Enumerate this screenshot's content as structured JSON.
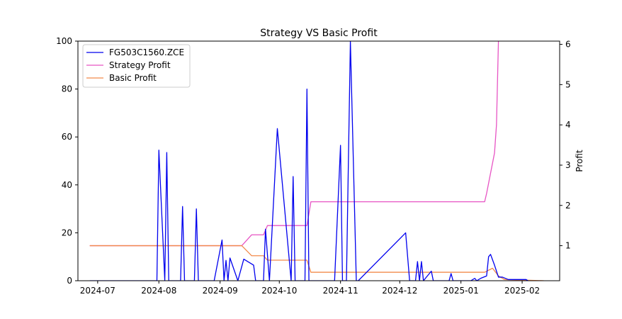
{
  "chart_data": {
    "type": "line",
    "title": "Strategy VS Basic Profit",
    "xlabel": "",
    "ylabel_left": "",
    "ylabel_right": "Profit",
    "x_ticks": [
      "2024-07",
      "2024-08",
      "2024-09",
      "2024-10",
      "2024-11",
      "2024-12",
      "2025-01",
      "2025-02"
    ],
    "y_left_ticks": [
      "0",
      "20",
      "40",
      "60",
      "80",
      "100"
    ],
    "y_right_ticks": [
      "1",
      "2",
      "3",
      "4",
      "5",
      "6"
    ],
    "y_left_range": [
      0,
      100
    ],
    "y_right_range": [
      0.13,
      6.08
    ],
    "x_range": [
      "2024-06-21",
      "2025-02-20"
    ],
    "legend_position": "top-left",
    "grid": false,
    "series": [
      {
        "name": "FG503C1560.ZCE",
        "axis": "left",
        "color": "#0000ee",
        "points": [
          [
            "2024-06-27",
            0
          ],
          [
            "2024-07-31",
            0
          ],
          [
            "2024-08-01",
            54.5
          ],
          [
            "2024-08-04",
            0
          ],
          [
            "2024-08-05",
            53.5
          ],
          [
            "2024-08-06",
            0
          ],
          [
            "2024-08-12",
            0
          ],
          [
            "2024-08-13",
            31
          ],
          [
            "2024-08-14",
            0
          ],
          [
            "2024-08-19",
            0
          ],
          [
            "2024-08-20",
            30
          ],
          [
            "2024-08-21",
            0
          ],
          [
            "2024-08-29",
            0
          ],
          [
            "2024-09-02",
            17
          ],
          [
            "2024-09-03",
            0
          ],
          [
            "2024-09-04",
            8.5
          ],
          [
            "2024-09-05",
            0
          ],
          [
            "2024-09-06",
            9.5
          ],
          [
            "2024-09-10",
            0
          ],
          [
            "2024-09-13",
            9
          ],
          [
            "2024-09-18",
            6.5
          ],
          [
            "2024-09-19",
            0
          ],
          [
            "2024-09-23",
            0
          ],
          [
            "2024-09-24",
            21.5
          ],
          [
            "2024-09-26",
            0
          ],
          [
            "2024-09-30",
            63.5
          ],
          [
            "2024-10-07",
            0
          ],
          [
            "2024-10-08",
            43.5
          ],
          [
            "2024-10-09",
            0
          ],
          [
            "2024-10-14",
            0
          ],
          [
            "2024-10-15",
            80
          ],
          [
            "2024-10-16",
            0
          ],
          [
            "2024-10-29",
            0
          ],
          [
            "2024-11-01",
            56.5
          ],
          [
            "2024-11-02",
            0
          ],
          [
            "2024-11-04",
            0
          ],
          [
            "2024-11-06",
            100
          ],
          [
            "2024-11-09",
            0
          ],
          [
            "2024-11-10",
            0
          ],
          [
            "2024-12-04",
            20
          ],
          [
            "2024-12-06",
            0
          ],
          [
            "2024-12-09",
            0
          ],
          [
            "2024-12-10",
            8
          ],
          [
            "2024-12-11",
            0
          ],
          [
            "2024-12-12",
            8
          ],
          [
            "2024-12-13",
            0
          ],
          [
            "2024-12-17",
            4
          ],
          [
            "2024-12-18",
            0
          ],
          [
            "2024-12-26",
            0
          ],
          [
            "2024-12-27",
            3
          ],
          [
            "2024-12-28",
            0
          ],
          [
            "2025-01-06",
            0
          ],
          [
            "2025-01-08",
            1
          ],
          [
            "2025-01-09",
            0
          ],
          [
            "2025-01-11",
            1
          ],
          [
            "2025-01-14",
            2
          ],
          [
            "2025-01-15",
            10
          ],
          [
            "2025-01-16",
            11
          ],
          [
            "2025-01-18",
            6.5
          ],
          [
            "2025-01-20",
            1.5
          ],
          [
            "2025-01-22",
            1.5
          ],
          [
            "2025-01-25",
            0.5
          ],
          [
            "2025-02-03",
            0.5
          ],
          [
            "2025-02-04",
            0
          ]
        ]
      },
      {
        "name": "Strategy Profit",
        "axis": "right",
        "color": "#e754c4",
        "points": [
          [
            "2024-06-27",
            1.0
          ],
          [
            "2024-09-12",
            1.0
          ],
          [
            "2024-09-17",
            1.27
          ],
          [
            "2024-09-23",
            1.27
          ],
          [
            "2024-09-25",
            1.5
          ],
          [
            "2024-10-15",
            1.5
          ],
          [
            "2024-10-17",
            2.09
          ],
          [
            "2025-01-13",
            2.09
          ],
          [
            "2025-01-14",
            2.3
          ],
          [
            "2025-01-18",
            3.3
          ],
          [
            "2025-01-19",
            4.0
          ],
          [
            "2025-01-20",
            6.1
          ]
        ]
      },
      {
        "name": "Basic Profit",
        "axis": "right",
        "color": "#f28b4b",
        "points": [
          [
            "2024-06-27",
            1.0
          ],
          [
            "2024-09-12",
            1.0
          ],
          [
            "2024-09-17",
            0.75
          ],
          [
            "2024-09-23",
            0.75
          ],
          [
            "2024-09-25",
            0.64
          ],
          [
            "2024-10-15",
            0.64
          ],
          [
            "2024-10-17",
            0.34
          ],
          [
            "2025-01-13",
            0.34
          ],
          [
            "2025-01-17",
            0.44
          ],
          [
            "2025-01-20",
            0.25
          ],
          [
            "2025-01-23",
            0.16
          ],
          [
            "2025-02-12",
            0.13
          ]
        ]
      }
    ]
  }
}
